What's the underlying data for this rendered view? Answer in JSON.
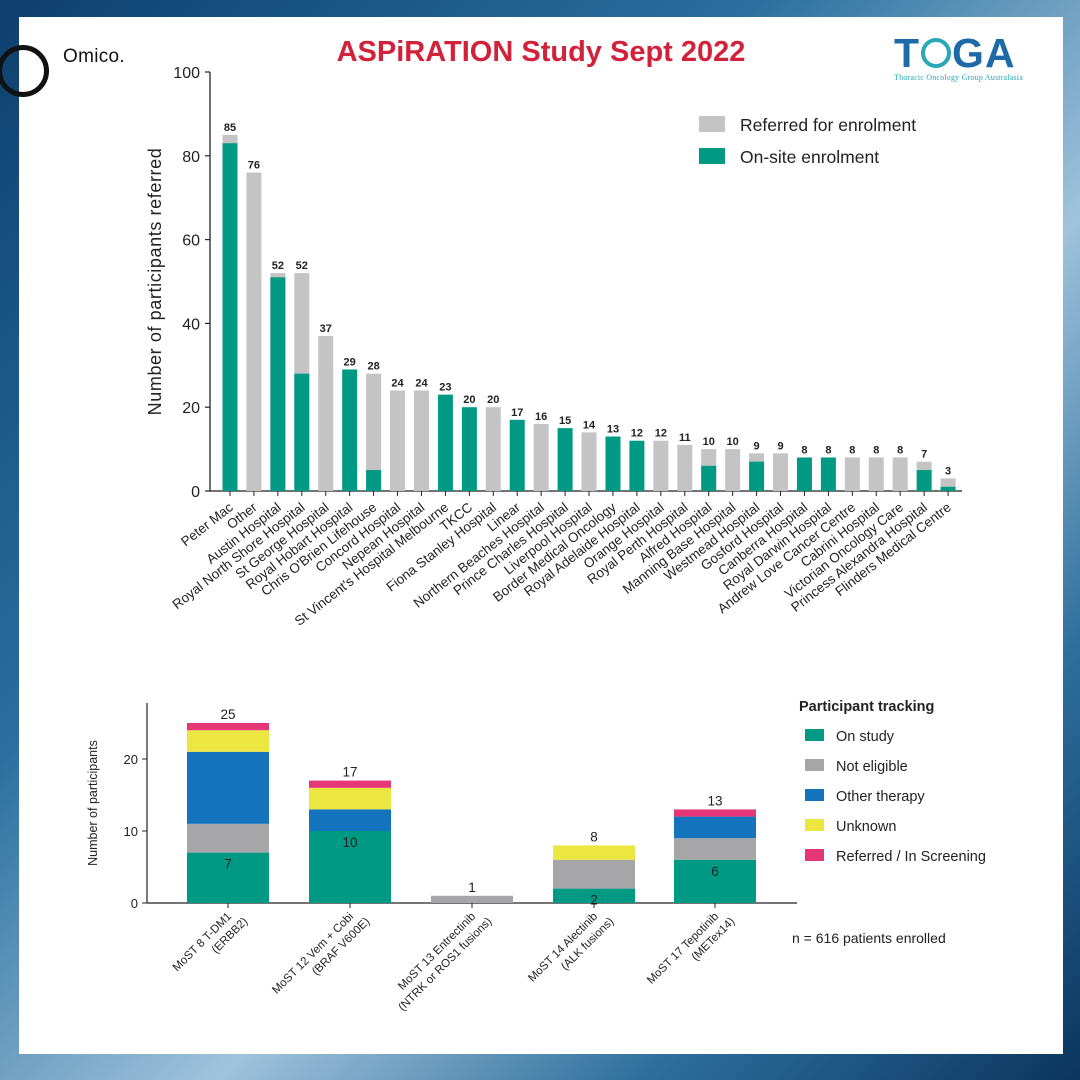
{
  "brand": {
    "left": "Omico.",
    "right": "TOGA",
    "right_o_letter": "O",
    "right_subtitle": "Thoracic Oncology Group Australasia"
  },
  "title": "ASPiRATION Study Sept 2022",
  "note": "n = 616 patients enrolled",
  "colors": {
    "title": "#d2213a",
    "teal": "#009a84",
    "gray": "#c4c4c4",
    "gray2": "#a6a6a8",
    "blue": "#1473bd",
    "yellow": "#ece641",
    "pink": "#e53677"
  },
  "chart_data": [
    {
      "type": "bar",
      "ylabel": "Number of participants referred",
      "ylim": [
        0,
        100
      ],
      "yticks": [
        0,
        20,
        40,
        60,
        80,
        100
      ],
      "legend_placement": "top-right",
      "categories": [
        "Peter Mac",
        "Other",
        "Austin Hospital",
        "Royal North Shore Hospital",
        "St George Hospital",
        "Royal Hobart Hospital",
        "Chris O'Brien Lifehouse",
        "Concord Hospital",
        "Nepean Hospital",
        "St Vincent's Hospital Melbourne",
        "TKCC",
        "Fiona Stanley Hospital",
        "Linear",
        "Northern Beaches Hospital",
        "Prince Charles Hospital",
        "Liverpool Hospital",
        "Border Medical Oncology",
        "Royal Adelaide Hospital",
        "Orange Hospital",
        "Royal Perth Hospital",
        "Alfred Hospital",
        "Manning Base Hospital",
        "Westmead Hospital",
        "Gosford Hospital",
        "Canberra Hospital",
        "Royal Darwin Hospital",
        "Andrew Love Cancer Centre",
        "Cabrini Hospital",
        "Victorian Oncology Care",
        "Princess Alexandra Hospital",
        "Flinders Medical Centre"
      ],
      "series": [
        {
          "name": "Referred for enrolment",
          "values": [
            85,
            76,
            52,
            52,
            37,
            29,
            28,
            24,
            24,
            23,
            20,
            20,
            17,
            16,
            15,
            14,
            13,
            12,
            12,
            11,
            10,
            10,
            9,
            9,
            8,
            8,
            8,
            8,
            8,
            7,
            3
          ]
        },
        {
          "name": "On-site enrolment",
          "values": [
            83,
            0,
            51,
            28,
            0,
            29,
            5,
            0,
            0,
            23,
            20,
            0,
            17,
            0,
            15,
            0,
            13,
            12,
            0,
            0,
            6,
            0,
            7,
            0,
            8,
            8,
            0,
            0,
            0,
            5,
            1
          ]
        }
      ],
      "data_labels": [
        "85",
        "76",
        "52",
        "52",
        "37",
        "29",
        "28",
        "24",
        "24",
        "23",
        "20",
        "20",
        "17",
        "16",
        "15",
        "14",
        "13",
        "12",
        "12",
        "11",
        "10",
        "10",
        "9",
        "9",
        "8",
        "8",
        "8",
        "8",
        "8",
        "7",
        "3"
      ]
    },
    {
      "type": "bar",
      "stacked": true,
      "ylabel": "Number of participants",
      "ylim": [
        0,
        27
      ],
      "yticks": [
        0,
        10,
        20
      ],
      "legend_title": "Participant tracking",
      "legend_placement": "right",
      "categories": [
        "MoST 8 T-DM1\n(ERBB2)",
        "MoST 12 Vem + Cobi\n(BRAF V600E)",
        "MoST 13 Entrectinib\n(NTRK or ROS1 fusions)",
        "MoST 14 Alectinib\n(ALK fusions)",
        "MoST 17 Tepotinib\n(METex14)"
      ],
      "series": [
        {
          "name": "On study",
          "values": [
            7,
            10,
            0,
            2,
            6
          ]
        },
        {
          "name": "Not eligible",
          "values": [
            4,
            0,
            1,
            4,
            3
          ]
        },
        {
          "name": "Other therapy",
          "values": [
            10,
            3,
            0,
            0,
            3
          ]
        },
        {
          "name": "Unknown",
          "values": [
            3,
            3,
            0,
            2,
            0
          ]
        },
        {
          "name": "Referred / In Screening",
          "values": [
            1,
            1,
            0,
            0,
            1
          ]
        }
      ],
      "total_labels": [
        "25",
        "17",
        "1",
        "8",
        "13"
      ],
      "inner_labels": [
        "7",
        "10",
        "",
        "2",
        "6"
      ]
    }
  ]
}
